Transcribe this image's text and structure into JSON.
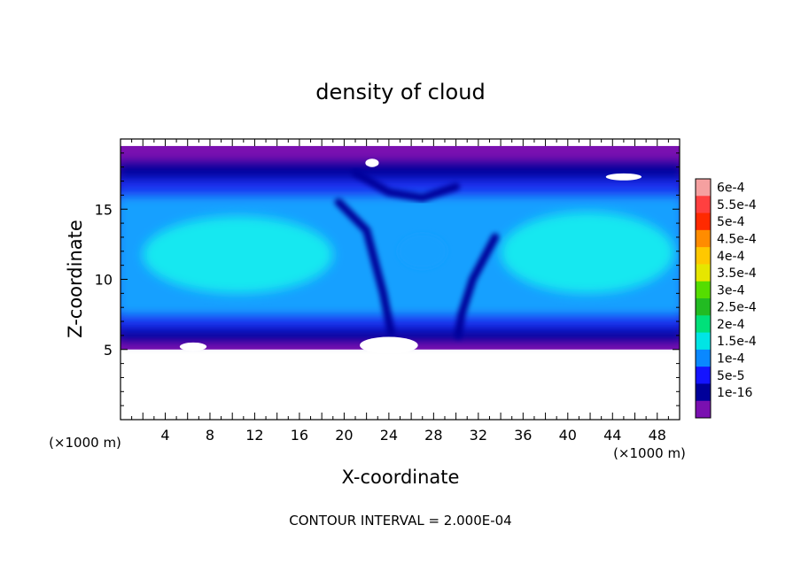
{
  "chart_data": {
    "type": "heatmap",
    "title": "density of cloud",
    "xlabel": "X-coordinate",
    "ylabel": "Z-coordinate",
    "x_unit_left": "(×1000 m)",
    "x_unit_right": "(×1000 m)",
    "footer": "CONTOUR INTERVAL = 2.000E-04",
    "xlim": [
      0,
      50
    ],
    "ylim": [
      0,
      20
    ],
    "xticks": [
      4,
      8,
      12,
      16,
      20,
      24,
      28,
      32,
      36,
      40,
      44,
      48
    ],
    "xtick_labels": [
      "4",
      "8",
      "12",
      "16",
      "20",
      "24",
      "28",
      "32",
      "36",
      "40",
      "44",
      "48"
    ],
    "yticks": [
      5,
      10,
      15
    ],
    "ytick_labels": [
      "5",
      "10",
      "15"
    ],
    "colorbar": {
      "labels": [
        "6e-4",
        "5.5e-4",
        "5e-4",
        "4.5e-4",
        "4e-4",
        "3.5e-4",
        "3e-4",
        "2.5e-4",
        "2e-4",
        "1.5e-4",
        "1e-4",
        "5e-5",
        "1e-16"
      ],
      "colors": [
        "#f5a0a0",
        "#ff4040",
        "#ff2a00",
        "#ff8c00",
        "#ffc800",
        "#e6e600",
        "#55dd00",
        "#22bb22",
        "#00e07a",
        "#00e5e5",
        "#0a88ff",
        "#1414ff",
        "#00009a",
        "#7a10b0"
      ]
    },
    "cloud_layer": {
      "base_z": 5,
      "top_z": 19.5,
      "fill_colors": {
        "core": "#18e8f0",
        "mid": "#12a0ff",
        "edge": "#1a32f0",
        "dark": "#06069a",
        "halo": "#7a10b0"
      }
    }
  }
}
